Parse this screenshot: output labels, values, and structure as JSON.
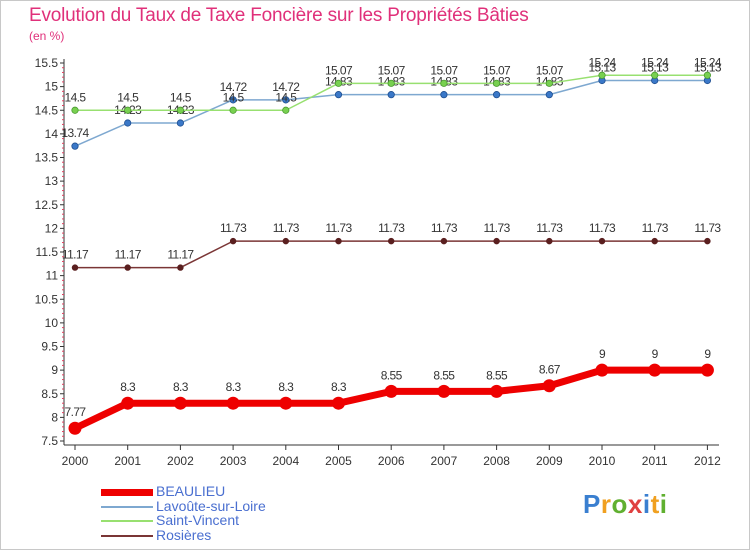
{
  "title": "Evolution du Taux de Taxe Foncière sur les Propriétés Bâties",
  "unit_label": "(en %)",
  "logo": {
    "letters": [
      "P",
      "r",
      "o",
      "x",
      "i",
      "t",
      "i"
    ],
    "colors": [
      "#3a7fd0",
      "#f0a020",
      "#60b030",
      "#e04040",
      "#3a7fd0",
      "#f0a020",
      "#60b030"
    ]
  },
  "chart_data": {
    "type": "line",
    "title": "Evolution du Taux de Taxe Foncière sur les Propriétés Bâties",
    "ylabel": "(en %)",
    "xlabel": "",
    "x": [
      "2000",
      "2001",
      "2002",
      "2003",
      "2004",
      "2005",
      "2006",
      "2007",
      "2008",
      "2009",
      "2010",
      "2011",
      "2012"
    ],
    "ylim": [
      7.5,
      15.5
    ],
    "yticks": [
      "7.5",
      "8",
      "8.5",
      "9",
      "9.5",
      "10",
      "10.5",
      "11",
      "11.5",
      "12",
      "12.5",
      "13",
      "13.5",
      "14",
      "14.5",
      "15",
      "15.5"
    ],
    "grid": false,
    "series": [
      {
        "name": "BEAULIEU",
        "color": "#ee0000",
        "values": [
          7.77,
          8.3,
          8.3,
          8.3,
          8.3,
          8.3,
          8.55,
          8.55,
          8.55,
          8.67,
          9,
          9,
          9
        ],
        "labels": [
          "7.77",
          "8.3",
          "8.3",
          "8.3",
          "8.3",
          "8.3",
          "8.55",
          "8.55",
          "8.55",
          "8.67",
          "9",
          "9",
          "9"
        ]
      },
      {
        "name": "Lavoûte-sur-Loire",
        "color": "#7ea8d0",
        "values": [
          13.74,
          14.23,
          14.23,
          14.72,
          14.72,
          14.83,
          14.83,
          14.83,
          14.83,
          14.83,
          15.13,
          15.13,
          15.13
        ],
        "labels": [
          "13.74",
          "14.23",
          "14.23",
          "14.72",
          "14.72",
          "14.83",
          "14.83",
          "14.83",
          "14.83",
          "14.83",
          "15.13",
          "15.13",
          "15.13"
        ]
      },
      {
        "name": "Saint-Vincent",
        "color": "#98e070",
        "values": [
          14.5,
          14.5,
          14.5,
          14.5,
          14.5,
          15.07,
          15.07,
          15.07,
          15.07,
          15.07,
          15.24,
          15.24,
          15.24
        ],
        "labels": [
          "14.5",
          "14.5",
          "14.5",
          "14.5",
          "14.5",
          "15.07",
          "15.07",
          "15.07",
          "15.07",
          "15.07",
          "15.24",
          "15.24",
          "15.24"
        ]
      },
      {
        "name": "Rosières",
        "color": "#7a3535",
        "values": [
          11.17,
          11.17,
          11.17,
          11.73,
          11.73,
          11.73,
          11.73,
          11.73,
          11.73,
          11.73,
          11.73,
          11.73,
          11.73
        ],
        "labels": [
          "11.17",
          "11.17",
          "11.17",
          "11.73",
          "11.73",
          "11.73",
          "11.73",
          "11.73",
          "11.73",
          "11.73",
          "11.73",
          "11.73",
          "11.73"
        ]
      }
    ],
    "legend_position": "bottom-left"
  }
}
